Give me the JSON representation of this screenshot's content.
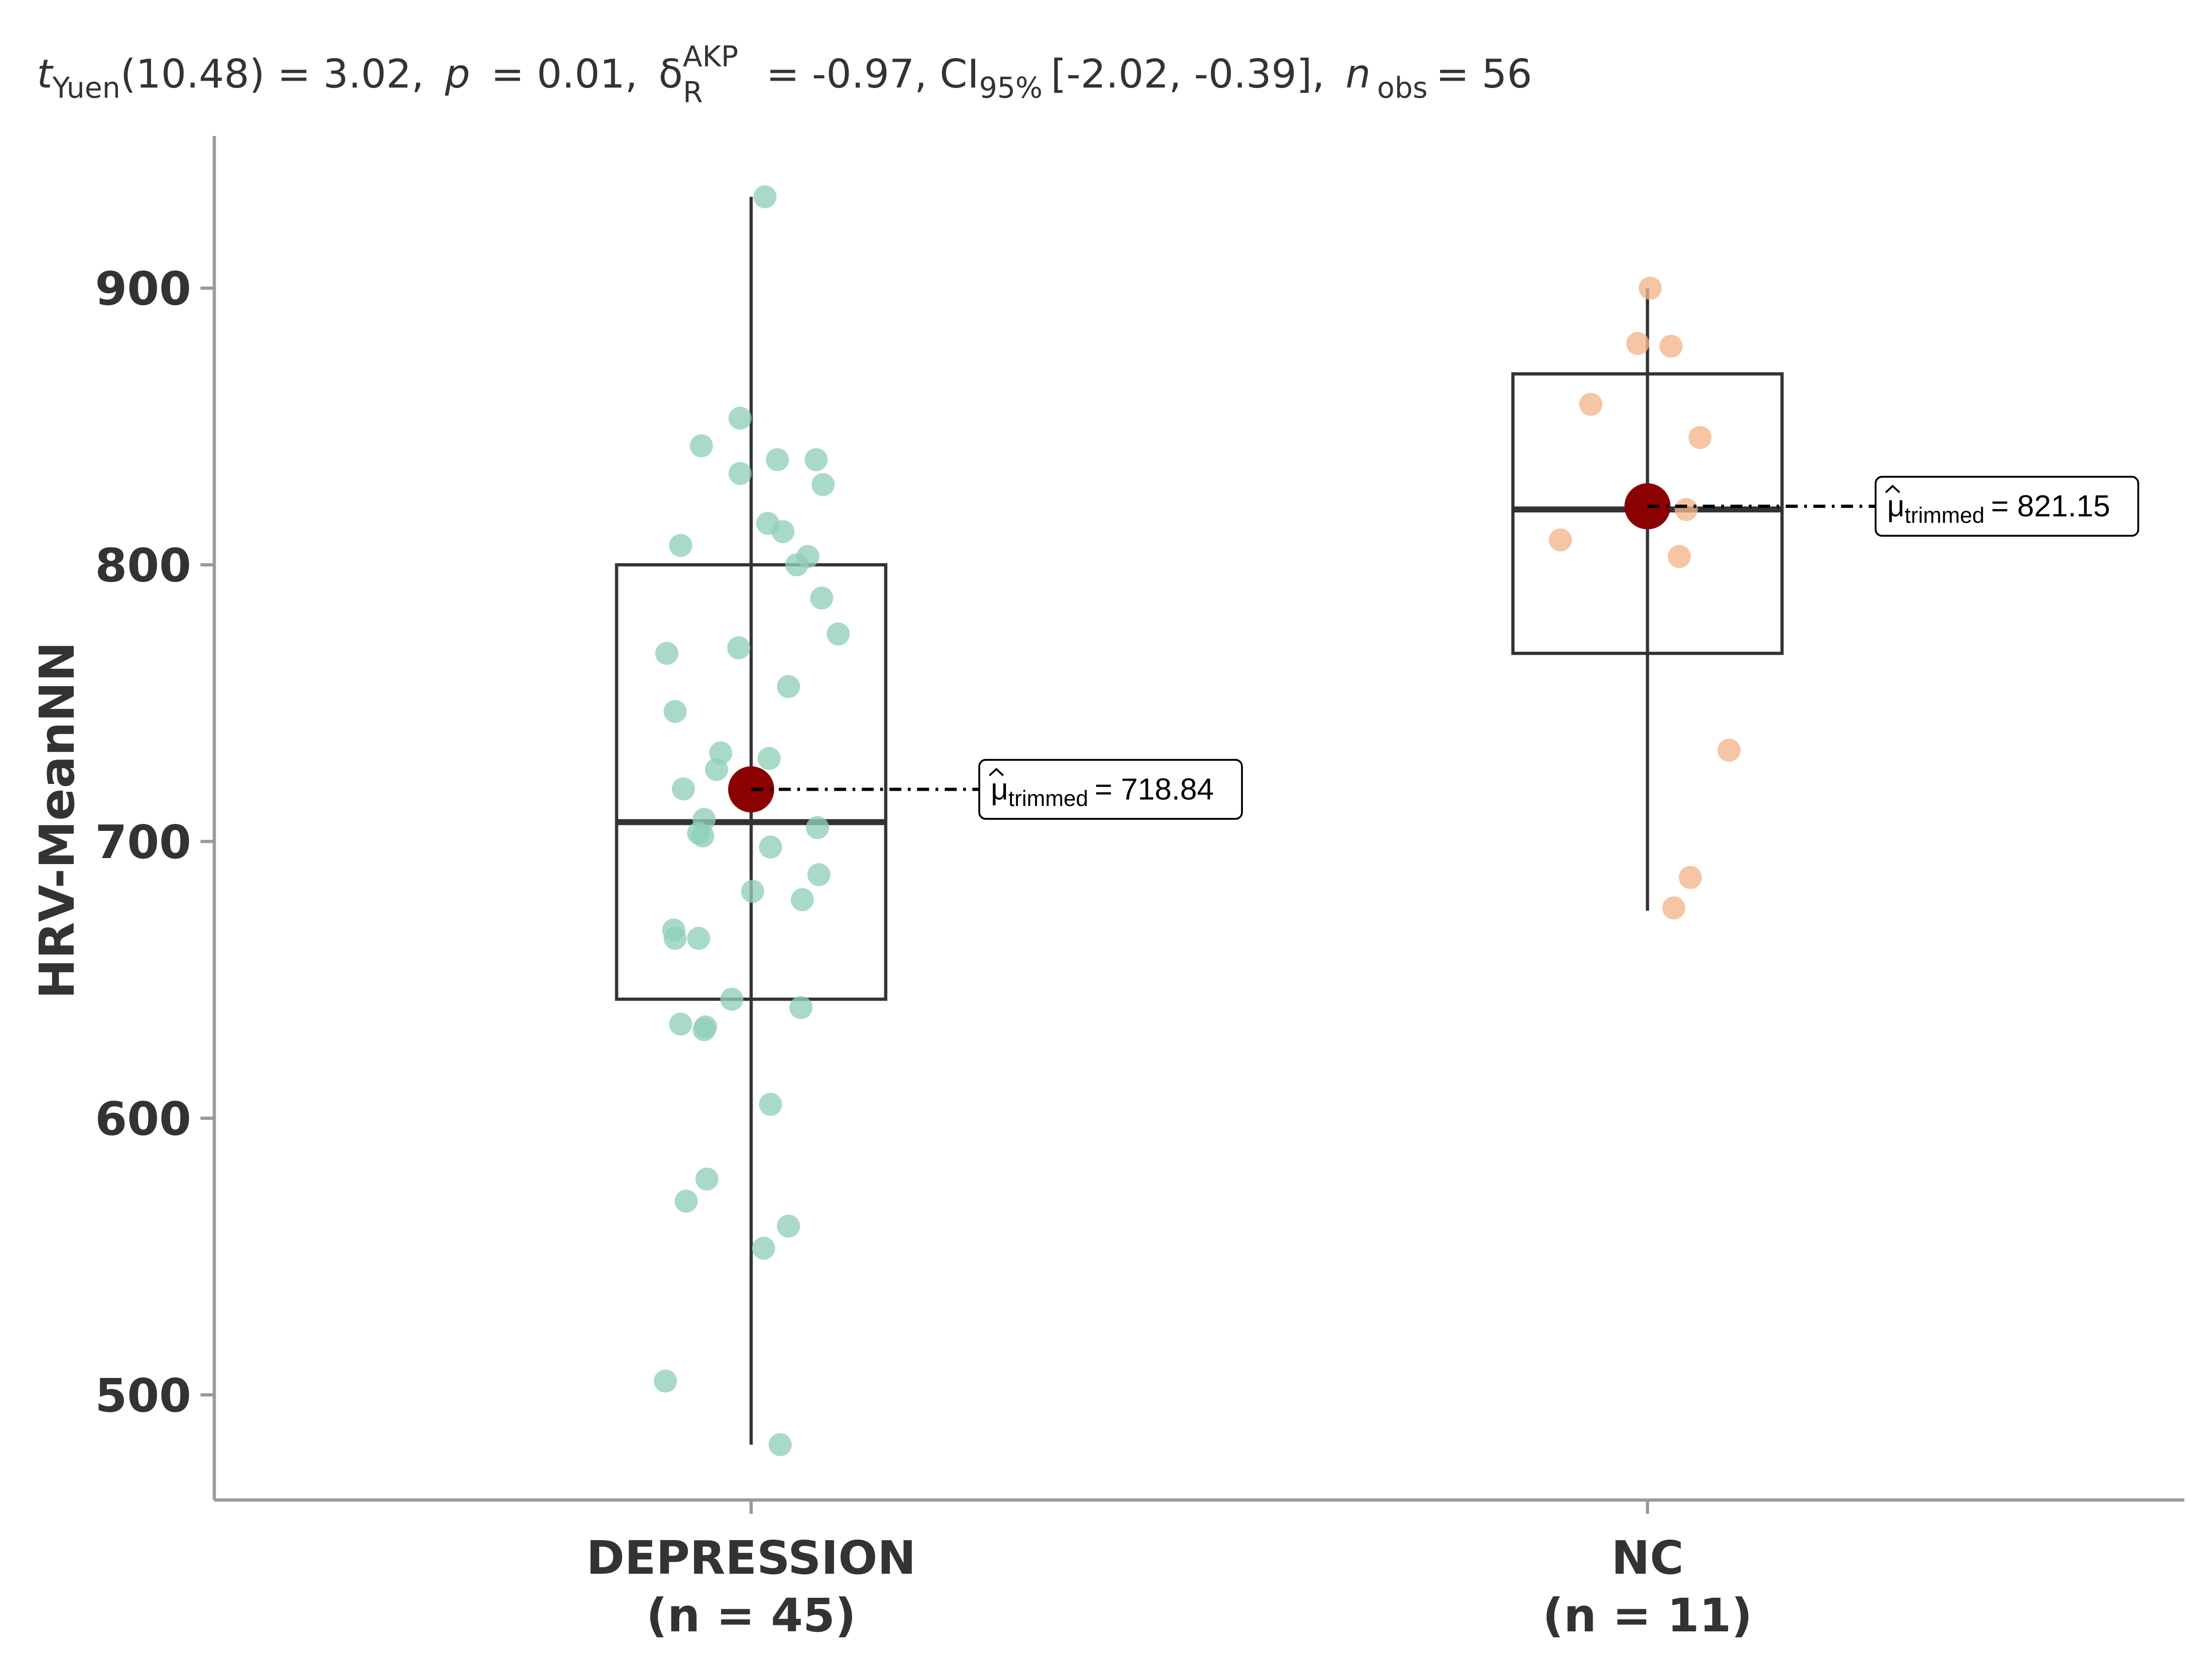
{
  "chart_data": {
    "type": "box",
    "subtitle": {
      "t_label": "t",
      "t_sub": "Yuen",
      "t_val": "(10.48) = 3.02,",
      "p_label": "p",
      "p_val": "= 0.01,",
      "delta_sym": "δ",
      "delta_sup": "AKP",
      "delta_sub": "R",
      "delta_val": "= -0.97, CI",
      "ci_sub": "95%",
      "ci_val": "[-2.02, -0.39],",
      "n_label": "n",
      "n_sub": "obs",
      "n_val": "= 56"
    },
    "ylabel": "HRV-MeanNN",
    "ylim": [
      462,
      955
    ],
    "yticks": [
      "500",
      "600",
      "700",
      "800",
      "900"
    ],
    "categories": [
      "DEPRESSION",
      "NC"
    ],
    "group_counts": [
      "(n = 45)",
      "(n = 11)"
    ],
    "colors": {
      "DEPRESSION": "#8fd0b7",
      "NC": "#f2b58a",
      "mean_point": "#8b0000",
      "box": "#333333"
    },
    "mean_label_prefix": "μ",
    "mean_label_sub": "trimmed",
    "groups": [
      {
        "name": "DEPRESSION",
        "box": {
          "q1": 643,
          "median": 707,
          "q3": 800,
          "whisker_low": 482,
          "whisker_high": 933
        },
        "trimmed_mean": 718.84,
        "mean_label": "= 718.84",
        "points": [
          [
            0.1,
            933
          ],
          [
            -0.08,
            853
          ],
          [
            -0.36,
            843
          ],
          [
            0.19,
            838
          ],
          [
            0.47,
            838
          ],
          [
            -0.08,
            833
          ],
          [
            0.52,
            829
          ],
          [
            0.12,
            815
          ],
          [
            0.23,
            812
          ],
          [
            -0.51,
            807
          ],
          [
            0.41,
            803
          ],
          [
            0.33,
            800
          ],
          [
            0.51,
            788
          ],
          [
            0.63,
            775
          ],
          [
            -0.09,
            770
          ],
          [
            -0.61,
            768
          ],
          [
            0.27,
            756
          ],
          [
            -0.55,
            747
          ],
          [
            -0.22,
            732
          ],
          [
            0.13,
            730
          ],
          [
            -0.25,
            726
          ],
          [
            -0.49,
            719
          ],
          [
            -0.34,
            708
          ],
          [
            0.48,
            705
          ],
          [
            -0.38,
            703
          ],
          [
            -0.35,
            702
          ],
          [
            0.14,
            698
          ],
          [
            0.49,
            688
          ],
          [
            0.01,
            682
          ],
          [
            0.37,
            679
          ],
          [
            -0.56,
            668
          ],
          [
            -0.55,
            665
          ],
          [
            -0.38,
            665
          ],
          [
            -0.14,
            643
          ],
          [
            0.36,
            640
          ],
          [
            -0.51,
            634
          ],
          [
            -0.33,
            633
          ],
          [
            -0.34,
            632
          ],
          [
            0.14,
            605
          ],
          [
            -0.32,
            578
          ],
          [
            -0.47,
            570
          ],
          [
            0.27,
            561
          ],
          [
            0.09,
            553
          ],
          [
            -0.62,
            505
          ],
          [
            0.21,
            482
          ]
        ]
      },
      {
        "name": "NC",
        "box": {
          "q1": 768,
          "median": 820,
          "q3": 869,
          "whisker_low": 675,
          "whisker_high": 900
        },
        "trimmed_mean": 821.15,
        "mean_label": "= 821.15",
        "points": [
          [
            0.02,
            900
          ],
          [
            -0.07,
            880
          ],
          [
            0.17,
            879
          ],
          [
            -0.41,
            858
          ],
          [
            0.38,
            846
          ],
          [
            0.28,
            820
          ],
          [
            -0.63,
            809
          ],
          [
            0.23,
            803
          ],
          [
            0.59,
            733
          ],
          [
            0.31,
            687
          ],
          [
            0.19,
            676
          ]
        ]
      }
    ]
  }
}
